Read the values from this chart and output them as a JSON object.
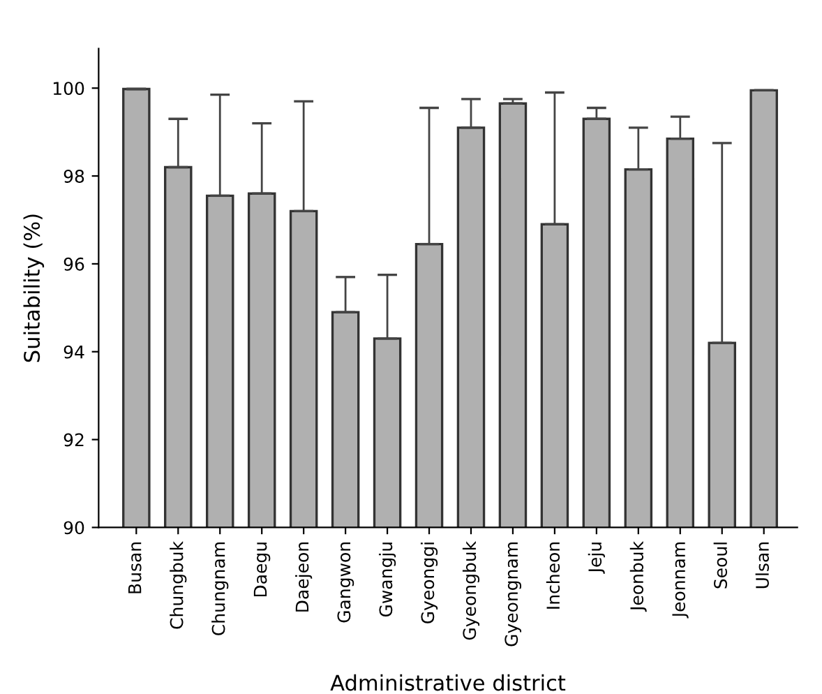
{
  "chart_data": {
    "type": "bar",
    "xlabel": "Administrative district",
    "ylabel": "Suitability (%)",
    "categories": [
      "Busan",
      "Chungbuk",
      "Chungnam",
      "Daegu",
      "Daejeon",
      "Gangwon",
      "Gwangju",
      "Gyeonggi",
      "Gyeongbuk",
      "Gyeongnam",
      "Incheon",
      "Jeju",
      "Jeonbuk",
      "Jeonnam",
      "Seoul",
      "Ulsan"
    ],
    "values": [
      99.98,
      98.2,
      97.55,
      97.6,
      97.2,
      94.9,
      94.3,
      96.45,
      99.1,
      99.65,
      96.9,
      99.3,
      98.15,
      98.85,
      94.2,
      99.95
    ],
    "errors": [
      null,
      [
        98.2,
        99.3
      ],
      [
        97.55,
        99.85
      ],
      [
        97.6,
        99.2
      ],
      [
        97.2,
        99.7
      ],
      [
        94.9,
        95.7
      ],
      [
        94.3,
        95.75
      ],
      [
        96.45,
        99.55
      ],
      [
        99.1,
        99.75
      ],
      [
        99.65,
        99.75
      ],
      [
        96.9,
        99.9
      ],
      [
        99.3,
        99.55
      ],
      [
        98.15,
        99.1
      ],
      [
        98.85,
        99.35
      ],
      [
        94.2,
        98.75
      ],
      null
    ],
    "color": "#b0b0b0",
    "ylim": [
      90,
      100.9
    ],
    "yticks": [
      90,
      92,
      94,
      96,
      98,
      100
    ],
    "grid": false
  }
}
